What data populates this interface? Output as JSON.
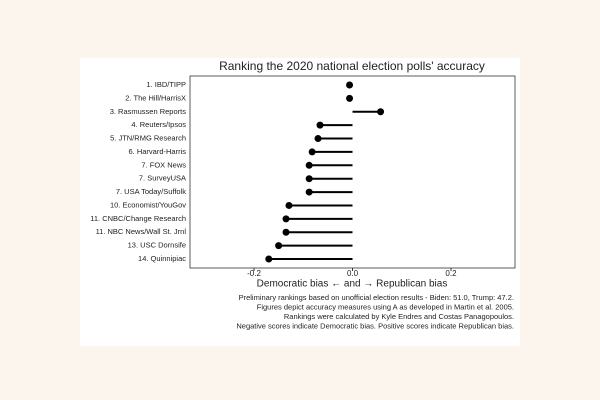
{
  "chart_data": {
    "type": "lollipop",
    "title": "Ranking the 2020 national election polls' accuracy",
    "categories": [
      "1. IBD/TIPP",
      "2. The Hill/HarrisX",
      "3. Rasmussen Reports",
      "4. Reuters/Ipsos",
      "5. JTN/RMG Research",
      "6. Harvard-Harris",
      "7. FOX News",
      "7. SurveyUSA",
      "7. USA Today/Suffolk",
      "10. Economist/YouGov",
      "11. CNBC/Change Research",
      "11. NBC News/Wall St. Jrnl",
      "13. USC Dornsife",
      "14. Quinnipiac"
    ],
    "values": [
      -0.006,
      -0.006,
      0.057,
      -0.066,
      -0.07,
      -0.082,
      -0.088,
      -0.088,
      -0.088,
      -0.129,
      -0.135,
      -0.135,
      -0.15,
      -0.17
    ],
    "color": "#000000",
    "xlabel": "Democratic bias ← and → Republican bias",
    "xlim": [
      -0.33,
      0.33
    ],
    "xticks": [
      -0.2,
      {
        "value": 0,
        "label": "0.0"
      },
      0.2
    ],
    "caption": [
      "Preliminary rankings based on unofficial election results - Biden: 51.0, Trump: 47.2.",
      "Figures depict accuracy measures using A as developed in Martin et al. 2005.",
      "Rankings were calculated by Kyle Endres and Costas Panagopoulos.",
      "Negative scores indicate Democratic bias. Positive scores indicate Republican bias."
    ]
  }
}
